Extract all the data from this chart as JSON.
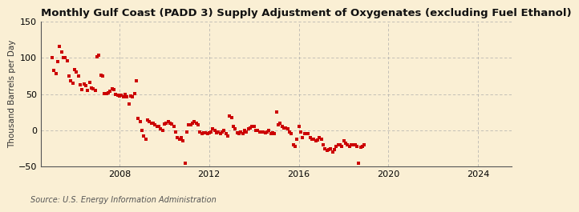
{
  "title": "Monthly Gulf Coast (PADD 3) Supply Adjustment of Oxygenates (excluding Fuel Ethanol)",
  "ylabel": "Thousand Barrels per Day",
  "source": "Source: U.S. Energy Information Administration",
  "background_color": "#faefd4",
  "plot_bg_color": "#faefd4",
  "dot_color": "#cc0000",
  "dot_size": 7,
  "xlim_start": 2004.5,
  "xlim_end": 2025.5,
  "ylim": [
    -50,
    150
  ],
  "yticks": [
    -50,
    0,
    50,
    100,
    150
  ],
  "xticks": [
    2008,
    2012,
    2016,
    2020,
    2024
  ],
  "grid_color": "#aaaaaa",
  "title_fontsize": 9.5,
  "ylabel_fontsize": 7.5,
  "tick_fontsize": 8,
  "source_fontsize": 7,
  "data": [
    [
      2005.0,
      100
    ],
    [
      2005.08,
      83
    ],
    [
      2005.17,
      78
    ],
    [
      2005.25,
      95
    ],
    [
      2005.33,
      116
    ],
    [
      2005.42,
      108
    ],
    [
      2005.5,
      100
    ],
    [
      2005.58,
      100
    ],
    [
      2005.67,
      96
    ],
    [
      2005.75,
      75
    ],
    [
      2005.83,
      68
    ],
    [
      2005.92,
      65
    ],
    [
      2006.0,
      84
    ],
    [
      2006.08,
      80
    ],
    [
      2006.17,
      75
    ],
    [
      2006.25,
      63
    ],
    [
      2006.33,
      56
    ],
    [
      2006.42,
      64
    ],
    [
      2006.5,
      62
    ],
    [
      2006.58,
      55
    ],
    [
      2006.67,
      66
    ],
    [
      2006.75,
      58
    ],
    [
      2006.83,
      57
    ],
    [
      2006.92,
      55
    ],
    [
      2007.0,
      101
    ],
    [
      2007.08,
      103
    ],
    [
      2007.17,
      76
    ],
    [
      2007.25,
      75
    ],
    [
      2007.33,
      51
    ],
    [
      2007.42,
      51
    ],
    [
      2007.5,
      52
    ],
    [
      2007.58,
      54
    ],
    [
      2007.67,
      57
    ],
    [
      2007.75,
      56
    ],
    [
      2007.83,
      50
    ],
    [
      2007.92,
      48
    ],
    [
      2008.0,
      47
    ],
    [
      2008.08,
      48
    ],
    [
      2008.17,
      46
    ],
    [
      2008.25,
      50
    ],
    [
      2008.33,
      46
    ],
    [
      2008.42,
      36
    ],
    [
      2008.5,
      47
    ],
    [
      2008.58,
      46
    ],
    [
      2008.67,
      51
    ],
    [
      2008.75,
      68
    ],
    [
      2008.83,
      16
    ],
    [
      2008.92,
      12
    ],
    [
      2009.0,
      0
    ],
    [
      2009.08,
      -8
    ],
    [
      2009.17,
      -12
    ],
    [
      2009.25,
      14
    ],
    [
      2009.33,
      12
    ],
    [
      2009.42,
      10
    ],
    [
      2009.5,
      10
    ],
    [
      2009.58,
      8
    ],
    [
      2009.67,
      5
    ],
    [
      2009.75,
      5
    ],
    [
      2009.83,
      2
    ],
    [
      2009.92,
      0
    ],
    [
      2010.0,
      9
    ],
    [
      2010.08,
      10
    ],
    [
      2010.17,
      12
    ],
    [
      2010.25,
      10
    ],
    [
      2010.33,
      9
    ],
    [
      2010.42,
      5
    ],
    [
      2010.5,
      -2
    ],
    [
      2010.58,
      -10
    ],
    [
      2010.67,
      -12
    ],
    [
      2010.75,
      -10
    ],
    [
      2010.83,
      -15
    ],
    [
      2010.92,
      -45
    ],
    [
      2011.0,
      -2
    ],
    [
      2011.08,
      8
    ],
    [
      2011.17,
      8
    ],
    [
      2011.25,
      10
    ],
    [
      2011.33,
      12
    ],
    [
      2011.42,
      10
    ],
    [
      2011.5,
      8
    ],
    [
      2011.58,
      -2
    ],
    [
      2011.67,
      -5
    ],
    [
      2011.75,
      -3
    ],
    [
      2011.83,
      -3
    ],
    [
      2011.92,
      -5
    ],
    [
      2012.0,
      -3
    ],
    [
      2012.08,
      -2
    ],
    [
      2012.17,
      2
    ],
    [
      2012.25,
      0
    ],
    [
      2012.33,
      -3
    ],
    [
      2012.42,
      -2
    ],
    [
      2012.5,
      -5
    ],
    [
      2012.58,
      -2
    ],
    [
      2012.67,
      0
    ],
    [
      2012.75,
      -5
    ],
    [
      2012.83,
      -8
    ],
    [
      2012.92,
      20
    ],
    [
      2013.0,
      18
    ],
    [
      2013.08,
      5
    ],
    [
      2013.17,
      2
    ],
    [
      2013.25,
      -3
    ],
    [
      2013.33,
      -5
    ],
    [
      2013.42,
      -2
    ],
    [
      2013.5,
      -5
    ],
    [
      2013.58,
      0
    ],
    [
      2013.67,
      -2
    ],
    [
      2013.75,
      2
    ],
    [
      2013.83,
      3
    ],
    [
      2013.92,
      5
    ],
    [
      2014.0,
      5
    ],
    [
      2014.08,
      0
    ],
    [
      2014.17,
      0
    ],
    [
      2014.25,
      -2
    ],
    [
      2014.33,
      -2
    ],
    [
      2014.42,
      -2
    ],
    [
      2014.5,
      -3
    ],
    [
      2014.58,
      -2
    ],
    [
      2014.67,
      0
    ],
    [
      2014.75,
      -5
    ],
    [
      2014.83,
      -3
    ],
    [
      2014.92,
      -5
    ],
    [
      2015.0,
      25
    ],
    [
      2015.08,
      8
    ],
    [
      2015.17,
      10
    ],
    [
      2015.25,
      5
    ],
    [
      2015.33,
      3
    ],
    [
      2015.42,
      3
    ],
    [
      2015.5,
      2
    ],
    [
      2015.58,
      -2
    ],
    [
      2015.67,
      -5
    ],
    [
      2015.75,
      -20
    ],
    [
      2015.83,
      -22
    ],
    [
      2015.92,
      -12
    ],
    [
      2016.0,
      5
    ],
    [
      2016.08,
      -2
    ],
    [
      2016.17,
      -10
    ],
    [
      2016.25,
      -5
    ],
    [
      2016.33,
      -5
    ],
    [
      2016.42,
      -5
    ],
    [
      2016.5,
      -10
    ],
    [
      2016.58,
      -12
    ],
    [
      2016.67,
      -12
    ],
    [
      2016.75,
      -15
    ],
    [
      2016.83,
      -13
    ],
    [
      2016.92,
      -10
    ],
    [
      2017.0,
      -12
    ],
    [
      2017.08,
      -20
    ],
    [
      2017.17,
      -25
    ],
    [
      2017.25,
      -28
    ],
    [
      2017.33,
      -27
    ],
    [
      2017.42,
      -25
    ],
    [
      2017.5,
      -30
    ],
    [
      2017.58,
      -27
    ],
    [
      2017.67,
      -22
    ],
    [
      2017.75,
      -20
    ],
    [
      2017.83,
      -20
    ],
    [
      2017.92,
      -22
    ],
    [
      2018.0,
      -15
    ],
    [
      2018.08,
      -18
    ],
    [
      2018.17,
      -20
    ],
    [
      2018.25,
      -22
    ],
    [
      2018.33,
      -20
    ],
    [
      2018.42,
      -20
    ],
    [
      2018.5,
      -20
    ],
    [
      2018.58,
      -22
    ],
    [
      2018.67,
      -45
    ],
    [
      2018.75,
      -23
    ],
    [
      2018.83,
      -22
    ],
    [
      2018.92,
      -20
    ]
  ]
}
